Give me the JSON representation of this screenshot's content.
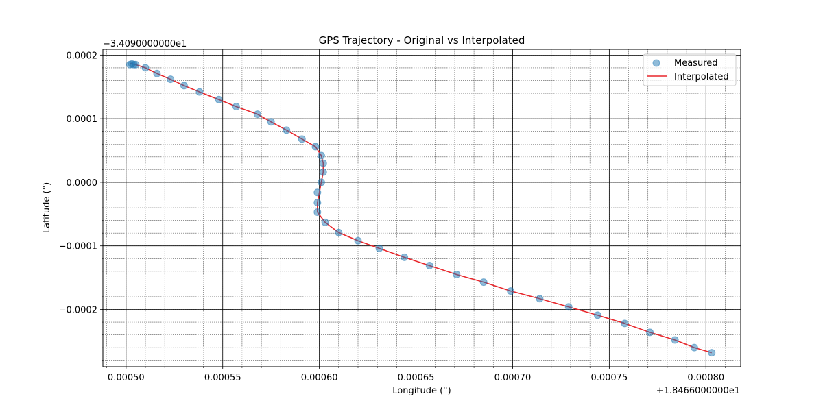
{
  "chart_data": {
    "type": "scatter",
    "title": "GPS Trajectory - Original vs Interpolated",
    "xlabel": "Longitude (°)",
    "ylabel": "Latitude (°)",
    "x_offset_label": "+1.8466000000e1",
    "y_offset_label": "−3.4090000000e1",
    "x_offset": 18.466,
    "y_offset": -34.09,
    "xlim": [
      0.000488,
      0.000818
    ],
    "ylim": [
      -0.00029,
      0.000209
    ],
    "x_major_ticks": [
      0.0005,
      0.00055,
      0.0006,
      0.00065,
      0.0007,
      0.00075,
      0.0008
    ],
    "x_tick_labels": [
      "0.00050",
      "0.00055",
      "0.00060",
      "0.00065",
      "0.00070",
      "0.00075",
      "0.00080"
    ],
    "y_major_ticks": [
      -0.0002,
      -0.0001,
      0.0,
      0.0001,
      0.0002
    ],
    "y_tick_labels": [
      "−0.0002",
      "−0.0001",
      "0.0000",
      "0.0001",
      "0.0002"
    ],
    "x_minor_step": 1e-05,
    "y_minor_step": 2e-05,
    "grid": true,
    "legend_position": "top-right",
    "series": [
      {
        "name": "Measured",
        "kind": "scatter",
        "color": "#1f77b4",
        "alpha": 0.5,
        "points": [
          [
            0.000502,
            0.000185
          ],
          [
            0.000503,
            0.000186
          ],
          [
            0.000504,
            0.000185
          ],
          [
            0.000505,
            0.000185
          ],
          [
            0.00051,
            0.00018
          ],
          [
            0.000516,
            0.000171
          ],
          [
            0.000523,
            0.000162
          ],
          [
            0.00053,
            0.000152
          ],
          [
            0.000538,
            0.000142
          ],
          [
            0.000548,
            0.00013
          ],
          [
            0.000557,
            0.000119
          ],
          [
            0.000568,
            0.000107
          ],
          [
            0.000575,
            9.5e-05
          ],
          [
            0.000583,
            8.2e-05
          ],
          [
            0.000591,
            6.8e-05
          ],
          [
            0.000598,
            5.6e-05
          ],
          [
            0.000601,
            4.2e-05
          ],
          [
            0.000602,
            3e-05
          ],
          [
            0.000602,
            1.6e-05
          ],
          [
            0.000601,
            0.0
          ],
          [
            0.000599,
            -1.6e-05
          ],
          [
            0.000599,
            -3.2e-05
          ],
          [
            0.000599,
            -4.7e-05
          ],
          [
            0.000603,
            -6.3e-05
          ],
          [
            0.00061,
            -7.9e-05
          ],
          [
            0.00062,
            -9.2e-05
          ],
          [
            0.000631,
            -0.000104
          ],
          [
            0.000644,
            -0.000118
          ],
          [
            0.000657,
            -0.000131
          ],
          [
            0.000671,
            -0.000145
          ],
          [
            0.000685,
            -0.000157
          ],
          [
            0.000699,
            -0.000171
          ],
          [
            0.000714,
            -0.000183
          ],
          [
            0.000729,
            -0.000196
          ],
          [
            0.000744,
            -0.000209
          ],
          [
            0.000758,
            -0.000222
          ],
          [
            0.000771,
            -0.000236
          ],
          [
            0.000784,
            -0.000248
          ],
          [
            0.000794,
            -0.00026
          ],
          [
            0.000803,
            -0.000268
          ]
        ]
      },
      {
        "name": "Interpolated",
        "kind": "line",
        "color": "#e8262b",
        "points": [
          [
            0.000502,
            0.000187
          ],
          [
            0.000506,
            0.000184
          ],
          [
            0.00051,
            0.00018
          ],
          [
            0.000516,
            0.000171
          ],
          [
            0.000523,
            0.000162
          ],
          [
            0.00053,
            0.000152
          ],
          [
            0.000538,
            0.000142
          ],
          [
            0.000548,
            0.00013
          ],
          [
            0.000557,
            0.000119
          ],
          [
            0.000568,
            0.000107
          ],
          [
            0.000575,
            9.5e-05
          ],
          [
            0.000583,
            8.2e-05
          ],
          [
            0.000591,
            6.8e-05
          ],
          [
            0.000598,
            5.6e-05
          ],
          [
            0.000601,
            4.2e-05
          ],
          [
            0.000602,
            3e-05
          ],
          [
            0.000602,
            1.6e-05
          ],
          [
            0.000601,
            0.0
          ],
          [
            0.0006,
            -1.6e-05
          ],
          [
            0.000599,
            -3.2e-05
          ],
          [
            0.000599,
            -4.7e-05
          ],
          [
            0.000603,
            -6.3e-05
          ],
          [
            0.00061,
            -7.9e-05
          ],
          [
            0.00062,
            -9.2e-05
          ],
          [
            0.000631,
            -0.000104
          ],
          [
            0.000644,
            -0.000118
          ],
          [
            0.000657,
            -0.000131
          ],
          [
            0.000671,
            -0.000145
          ],
          [
            0.000685,
            -0.000157
          ],
          [
            0.000699,
            -0.000171
          ],
          [
            0.000714,
            -0.000183
          ],
          [
            0.000729,
            -0.000196
          ],
          [
            0.000744,
            -0.000209
          ],
          [
            0.000758,
            -0.000222
          ],
          [
            0.000771,
            -0.000236
          ],
          [
            0.000784,
            -0.000248
          ],
          [
            0.000794,
            -0.00026
          ],
          [
            0.000803,
            -0.000268
          ]
        ]
      }
    ]
  }
}
